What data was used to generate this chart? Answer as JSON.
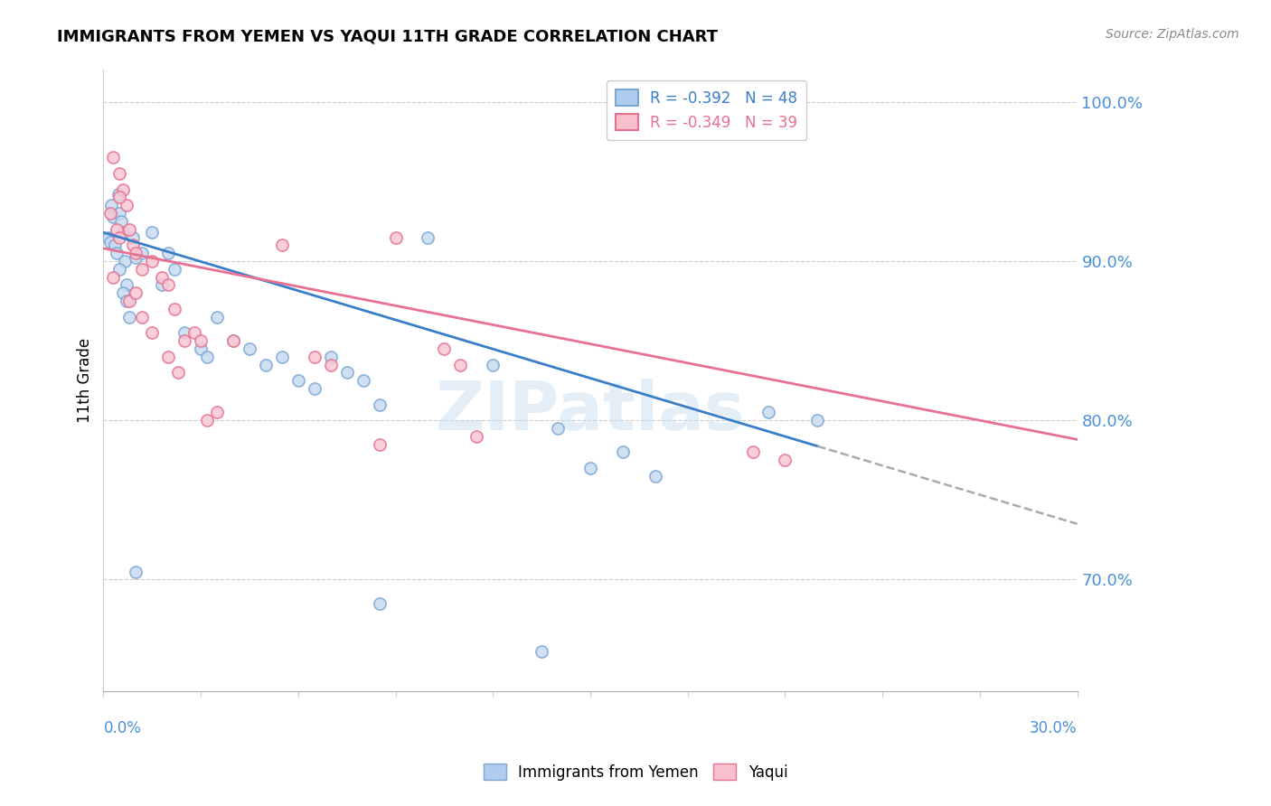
{
  "title": "IMMIGRANTS FROM YEMEN VS YAQUI 11TH GRADE CORRELATION CHART",
  "source": "Source: ZipAtlas.com",
  "ylabel": "11th Grade",
  "right_yticks": [
    70.0,
    80.0,
    90.0,
    100.0
  ],
  "xmin": 0.0,
  "xmax": 30.0,
  "ymin": 63.0,
  "ymax": 102.0,
  "blue_R": -0.392,
  "blue_N": 48,
  "pink_R": -0.349,
  "pink_N": 39,
  "blue_color": "#7ba7d4",
  "pink_color": "#f4a0b0",
  "blue_line_x0": 0.0,
  "blue_line_y0": 91.8,
  "blue_line_x1": 30.0,
  "blue_line_y1": 73.5,
  "blue_solid_end_x": 22.0,
  "pink_line_x0": 0.0,
  "pink_line_y0": 90.8,
  "pink_line_x1": 30.0,
  "pink_line_y1": 78.8,
  "blue_scatter": [
    [
      0.15,
      91.5
    ],
    [
      0.2,
      91.2
    ],
    [
      0.25,
      93.5
    ],
    [
      0.3,
      92.8
    ],
    [
      0.35,
      91.0
    ],
    [
      0.4,
      90.5
    ],
    [
      0.45,
      94.2
    ],
    [
      0.5,
      93.0
    ],
    [
      0.55,
      92.5
    ],
    [
      0.6,
      91.8
    ],
    [
      0.65,
      90.0
    ],
    [
      0.7,
      88.5
    ],
    [
      0.5,
      89.5
    ],
    [
      0.6,
      88.0
    ],
    [
      0.7,
      87.5
    ],
    [
      0.8,
      86.5
    ],
    [
      0.9,
      91.5
    ],
    [
      1.0,
      90.2
    ],
    [
      1.2,
      90.5
    ],
    [
      1.5,
      91.8
    ],
    [
      1.8,
      88.5
    ],
    [
      2.0,
      90.5
    ],
    [
      2.2,
      89.5
    ],
    [
      2.5,
      85.5
    ],
    [
      3.0,
      84.5
    ],
    [
      3.2,
      84.0
    ],
    [
      3.5,
      86.5
    ],
    [
      4.0,
      85.0
    ],
    [
      4.5,
      84.5
    ],
    [
      5.0,
      83.5
    ],
    [
      5.5,
      84.0
    ],
    [
      6.0,
      82.5
    ],
    [
      6.5,
      82.0
    ],
    [
      7.0,
      84.0
    ],
    [
      7.5,
      83.0
    ],
    [
      8.0,
      82.5
    ],
    [
      8.5,
      81.0
    ],
    [
      10.0,
      91.5
    ],
    [
      12.0,
      83.5
    ],
    [
      14.0,
      79.5
    ],
    [
      15.0,
      77.0
    ],
    [
      16.0,
      78.0
    ],
    [
      17.0,
      76.5
    ],
    [
      20.5,
      80.5
    ],
    [
      22.0,
      80.0
    ],
    [
      1.0,
      70.5
    ],
    [
      8.5,
      68.5
    ],
    [
      13.5,
      65.5
    ]
  ],
  "pink_scatter": [
    [
      0.2,
      93.0
    ],
    [
      0.4,
      92.0
    ],
    [
      0.5,
      91.5
    ],
    [
      0.3,
      96.5
    ],
    [
      0.5,
      95.5
    ],
    [
      0.6,
      94.5
    ],
    [
      0.7,
      93.5
    ],
    [
      0.8,
      92.0
    ],
    [
      0.9,
      91.0
    ],
    [
      1.0,
      90.5
    ],
    [
      1.2,
      89.5
    ],
    [
      1.5,
      90.0
    ],
    [
      1.8,
      89.0
    ],
    [
      2.0,
      88.5
    ],
    [
      2.2,
      87.0
    ],
    [
      2.5,
      85.0
    ],
    [
      2.8,
      85.5
    ],
    [
      3.0,
      85.0
    ],
    [
      3.2,
      80.0
    ],
    [
      3.5,
      80.5
    ],
    [
      4.0,
      85.0
    ],
    [
      5.5,
      91.0
    ],
    [
      6.5,
      84.0
    ],
    [
      7.0,
      83.5
    ],
    [
      8.5,
      78.5
    ],
    [
      9.0,
      91.5
    ],
    [
      10.5,
      84.5
    ],
    [
      11.0,
      83.5
    ],
    [
      11.5,
      79.0
    ],
    [
      0.8,
      87.5
    ],
    [
      1.0,
      88.0
    ],
    [
      1.2,
      86.5
    ],
    [
      1.5,
      85.5
    ],
    [
      2.0,
      84.0
    ],
    [
      2.3,
      83.0
    ],
    [
      20.0,
      78.0
    ],
    [
      21.0,
      77.5
    ],
    [
      0.3,
      89.0
    ],
    [
      0.5,
      94.0
    ]
  ],
  "watermark": "ZIPatlas",
  "figsize": [
    14.06,
    8.92
  ],
  "dpi": 100
}
